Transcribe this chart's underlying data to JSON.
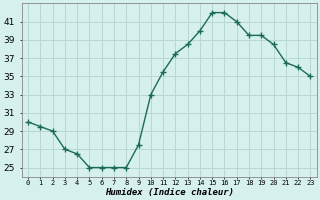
{
  "x": [
    0,
    1,
    2,
    3,
    4,
    5,
    6,
    7,
    8,
    9,
    10,
    11,
    12,
    13,
    14,
    15,
    16,
    17,
    18,
    19,
    20,
    21,
    22,
    23
  ],
  "y": [
    30,
    29.5,
    29,
    27,
    26.5,
    25,
    25,
    25,
    25,
    27.5,
    33,
    35.5,
    37.5,
    38.5,
    40,
    42,
    42,
    41,
    39.5,
    39.5,
    38.5,
    36.5,
    36,
    35
  ],
  "line_color": "#1a6b5a",
  "marker": "+",
  "marker_size": 4,
  "marker_linewidth": 1.0,
  "background_color": "#d6f0ee",
  "grid_color": "#b8d8d6",
  "xlabel": "Humidex (Indice chaleur)",
  "ylim": [
    24,
    43
  ],
  "xlim": [
    -0.5,
    23.5
  ],
  "yticks": [
    25,
    27,
    29,
    31,
    33,
    35,
    37,
    39,
    41
  ],
  "xticks": [
    0,
    1,
    2,
    3,
    4,
    5,
    6,
    7,
    8,
    9,
    10,
    11,
    12,
    13,
    14,
    15,
    16,
    17,
    18,
    19,
    20,
    21,
    22,
    23
  ],
  "xtick_labels": [
    "0",
    "1",
    "2",
    "3",
    "4",
    "5",
    "6",
    "7",
    "8",
    "9",
    "10",
    "11",
    "12",
    "13",
    "14",
    "15",
    "16",
    "17",
    "18",
    "19",
    "20",
    "21",
    "22",
    "23"
  ],
  "line_width": 1.0,
  "ytick_fontsize": 6.5,
  "xtick_fontsize": 5.0,
  "xlabel_fontsize": 6.5
}
